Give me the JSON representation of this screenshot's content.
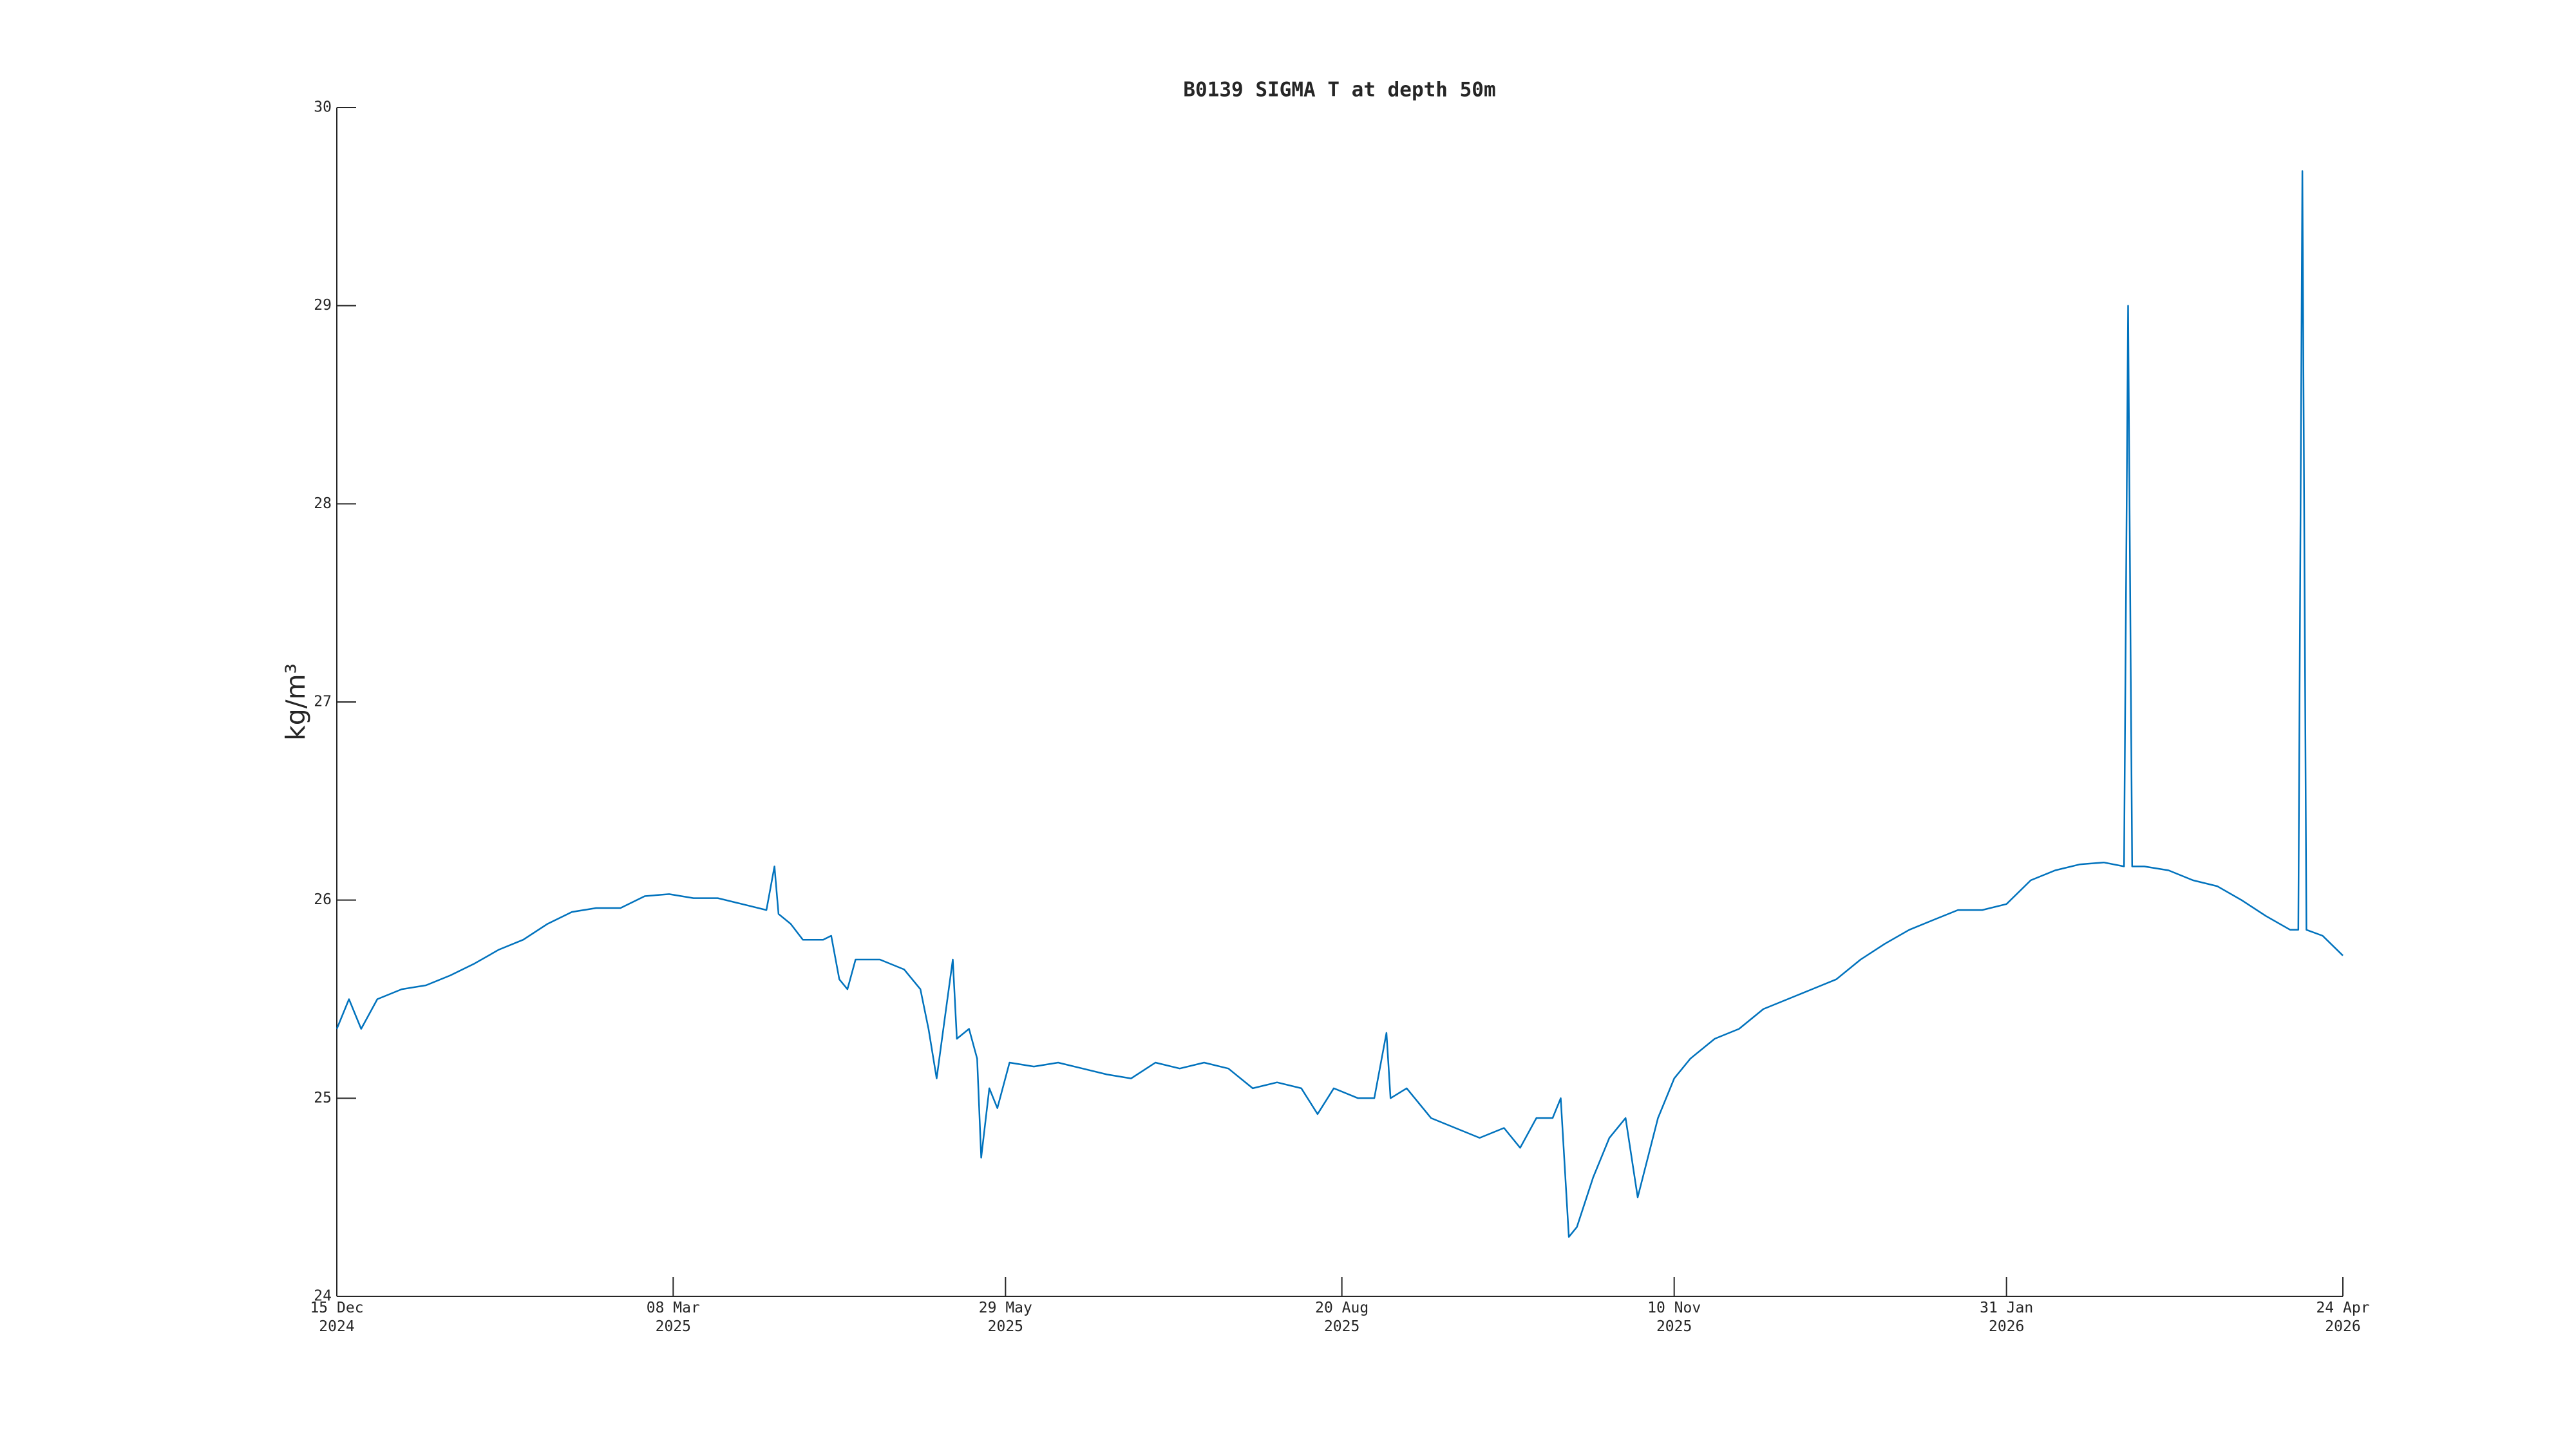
{
  "chart_data": {
    "type": "line",
    "title": "B0139 SIGMA T at depth 50m",
    "y_label": "kg/m³",
    "color": "#0072bd",
    "x": [
      "2024-12-15",
      "2024-12-18",
      "2024-12-21",
      "2024-12-25",
      "2024-12-31",
      "2025-01-06",
      "2025-01-12",
      "2025-01-18",
      "2025-01-24",
      "2025-01-30",
      "2025-02-05",
      "2025-02-11",
      "2025-02-17",
      "2025-02-23",
      "2025-03-01",
      "2025-03-07",
      "2025-03-13",
      "2025-03-19",
      "2025-03-25",
      "2025-03-31",
      "2025-04-02",
      "2025-04-03",
      "2025-04-06",
      "2025-04-09",
      "2025-04-14",
      "2025-04-16",
      "2025-04-18",
      "2025-04-20",
      "2025-04-22",
      "2025-04-28",
      "2025-05-04",
      "2025-05-08",
      "2025-05-10",
      "2025-05-12",
      "2025-05-14",
      "2025-05-16",
      "2025-05-17",
      "2025-05-20",
      "2025-05-22",
      "2025-05-23",
      "2025-05-25",
      "2025-05-27",
      "2025-05-30",
      "2025-06-05",
      "2025-06-11",
      "2025-06-17",
      "2025-06-23",
      "2025-06-29",
      "2025-07-05",
      "2025-07-11",
      "2025-07-17",
      "2025-07-23",
      "2025-07-29",
      "2025-08-04",
      "2025-08-10",
      "2025-08-14",
      "2025-08-18",
      "2025-08-24",
      "2025-08-28",
      "2025-08-31",
      "2025-09-01",
      "2025-09-05",
      "2025-09-11",
      "2025-09-17",
      "2025-09-23",
      "2025-09-29",
      "2025-10-03",
      "2025-10-07",
      "2025-10-11",
      "2025-10-13",
      "2025-10-15",
      "2025-10-17",
      "2025-10-21",
      "2025-10-25",
      "2025-10-29",
      "2025-11-01",
      "2025-11-06",
      "2025-11-10",
      "2025-11-14",
      "2025-11-20",
      "2025-11-26",
      "2025-12-02",
      "2025-12-08",
      "2025-12-14",
      "2025-12-20",
      "2025-12-26",
      "2026-01-01",
      "2026-01-07",
      "2026-01-13",
      "2026-01-19",
      "2026-01-25",
      "2026-01-31",
      "2026-02-06",
      "2026-02-12",
      "2026-02-18",
      "2026-02-24",
      "2026-03-01",
      "2026-03-02",
      "2026-03-03",
      "2026-03-06",
      "2026-03-12",
      "2026-03-18",
      "2026-03-24",
      "2026-03-30",
      "2026-04-05",
      "2026-04-11",
      "2026-04-13",
      "2026-04-14",
      "2026-04-15",
      "2026-04-19",
      "2026-04-24"
    ],
    "values": [
      25.35,
      25.5,
      25.35,
      25.5,
      25.55,
      25.57,
      25.62,
      25.68,
      25.75,
      25.8,
      25.88,
      25.94,
      25.96,
      25.96,
      26.02,
      26.03,
      26.01,
      26.01,
      25.98,
      25.95,
      26.17,
      25.93,
      25.88,
      25.8,
      25.8,
      25.82,
      25.6,
      25.55,
      25.7,
      25.7,
      25.65,
      25.55,
      25.35,
      25.1,
      25.4,
      25.7,
      25.3,
      25.35,
      25.2,
      24.7,
      25.05,
      24.95,
      25.18,
      25.16,
      25.18,
      25.15,
      25.12,
      25.1,
      25.18,
      25.15,
      25.18,
      25.15,
      25.05,
      25.08,
      25.05,
      24.92,
      25.05,
      25.0,
      25.0,
      25.33,
      25.0,
      25.05,
      24.9,
      24.85,
      24.8,
      24.85,
      24.75,
      24.9,
      24.9,
      25.0,
      24.3,
      24.35,
      24.6,
      24.8,
      24.9,
      24.5,
      24.9,
      25.1,
      25.2,
      25.3,
      25.35,
      25.45,
      25.5,
      25.55,
      25.6,
      25.7,
      25.78,
      25.85,
      25.9,
      25.95,
      25.95,
      25.98,
      26.1,
      26.15,
      26.18,
      26.19,
      26.17,
      29.0,
      26.17,
      26.17,
      26.15,
      26.1,
      26.07,
      26.0,
      25.92,
      25.85,
      25.85,
      29.68,
      25.85,
      25.82,
      25.72
    ],
    "xlim": [
      "2024-12-15",
      "2026-04-24"
    ],
    "xticks": [
      {
        "value": "2024-12-15",
        "label": "15 Dec\n2024"
      },
      {
        "value": "2025-03-08",
        "label": "08 Mar\n2025"
      },
      {
        "value": "2025-05-29",
        "label": "29 May\n2025"
      },
      {
        "value": "2025-08-20",
        "label": "20 Aug\n2025"
      },
      {
        "value": "2025-11-10",
        "label": "10 Nov\n2025"
      },
      {
        "value": "2026-01-31",
        "label": "31 Jan\n2026"
      },
      {
        "value": "2026-04-24",
        "label": "24 Apr\n2026"
      }
    ],
    "ylim": [
      24,
      30
    ],
    "yticks": [
      24,
      25,
      26,
      27,
      28,
      29,
      30
    ]
  }
}
